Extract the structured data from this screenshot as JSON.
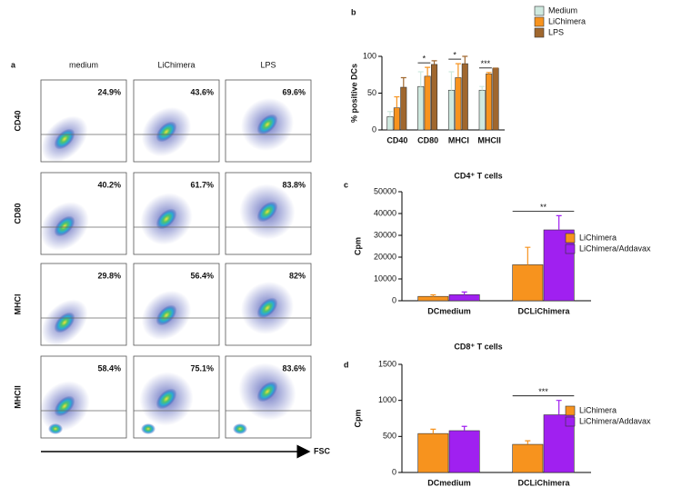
{
  "flow_panel": {
    "panel_label": "a",
    "columns": [
      "medium",
      "LiChimera",
      "LPS"
    ],
    "rows": [
      "CD40",
      "CD80",
      "MHCI",
      "MHCII"
    ],
    "percentages": [
      [
        "24.9%",
        "43.6%",
        "69.6%"
      ],
      [
        "40.2%",
        "61.7%",
        "83.8%"
      ],
      [
        "29.8%",
        "56.4%",
        "82%"
      ],
      [
        "58.4%",
        "75.1%",
        "83.6%"
      ]
    ],
    "x_axis_label": "FSC"
  },
  "chart_data": [
    {
      "type": "bar",
      "panel_label": "b",
      "y_label": "% positive DCs",
      "categories": [
        "CD40",
        "CD80",
        "MHCI",
        "MHCII"
      ],
      "series": [
        {
          "name": "Medium",
          "color": "#cfe9df",
          "values": [
            18,
            59,
            54,
            54
          ],
          "errors": [
            7,
            20,
            25,
            5
          ]
        },
        {
          "name": "LiChimera",
          "color": "#f7931e",
          "values": [
            30,
            73,
            71,
            76
          ],
          "errors": [
            15,
            12,
            19,
            2
          ]
        },
        {
          "name": "LPS",
          "color": "#a0672e",
          "values": [
            58,
            89,
            90,
            84
          ],
          "errors": [
            13,
            5,
            10,
            0
          ]
        }
      ],
      "annotations": [
        null,
        "*",
        "*",
        "***"
      ],
      "ylim": [
        0,
        100
      ],
      "yticks": [
        0,
        50,
        100
      ],
      "legend": "right"
    },
    {
      "type": "bar",
      "panel_label": "c",
      "title": "CD4⁺ T cells",
      "y_label": "Cpm",
      "categories": [
        "DCmedium",
        "DCLiChimera"
      ],
      "series": [
        {
          "name": "LiChimera",
          "color": "#f7931e",
          "values": [
            2000,
            16500
          ],
          "errors": [
            700,
            8000
          ]
        },
        {
          "name": "LiChimera/Addavax",
          "color": "#a020f0",
          "values": [
            2800,
            32500
          ],
          "errors": [
            1200,
            6500
          ]
        }
      ],
      "annotations": [
        null,
        "**"
      ],
      "ylim": [
        0,
        50000
      ],
      "yticks": [
        0,
        10000,
        20000,
        30000,
        40000,
        50000
      ],
      "legend": "right"
    },
    {
      "type": "bar",
      "panel_label": "d",
      "title": "CD8⁺ T cells",
      "y_label": "Cpm",
      "categories": [
        "DCmedium",
        "DCLiChimera"
      ],
      "series": [
        {
          "name": "LiChimera",
          "color": "#f7931e",
          "values": [
            540,
            390
          ],
          "errors": [
            60,
            50
          ]
        },
        {
          "name": "LiChimera/Addavax",
          "color": "#a020f0",
          "values": [
            580,
            800
          ],
          "errors": [
            60,
            200
          ]
        }
      ],
      "annotations": [
        null,
        "***"
      ],
      "ylim": [
        0,
        1500
      ],
      "yticks": [
        0,
        500,
        1000,
        1500
      ],
      "legend": "right"
    }
  ]
}
